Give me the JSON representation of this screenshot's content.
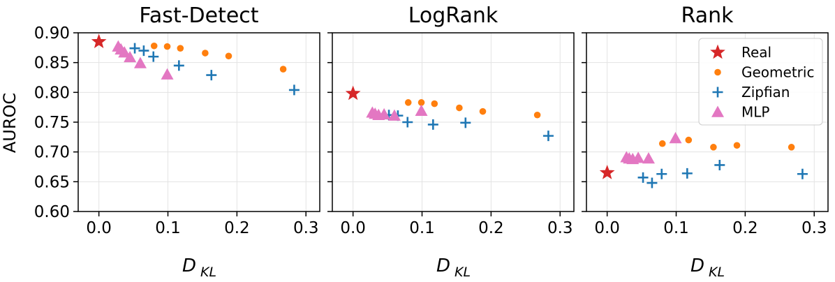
{
  "figure": {
    "ylabel": "AUROC",
    "y_ticks": [
      "0.60",
      "0.65",
      "0.70",
      "0.75",
      "0.80",
      "0.85",
      "0.90"
    ],
    "x_ticks": [
      "0.0",
      "0.1",
      "0.2",
      "0.3"
    ],
    "colors": {
      "Real": "#d62728",
      "Geometric": "#ff7f0e",
      "Zipfian": "#1f77b4",
      "MLP": "#e377c2"
    },
    "legend": {
      "location": "top-right",
      "entries": [
        "Real",
        "Geometric",
        "Zipfian",
        "MLP"
      ]
    }
  },
  "chart_data": [
    {
      "type": "scatter",
      "title": "Fast-Detect",
      "xlabel_main": "D",
      "xlabel_sub": "KL",
      "ylabel": "AUROC",
      "xlim": [
        -0.03,
        0.32
      ],
      "ylim": [
        0.6,
        0.9
      ],
      "grid": true,
      "series": [
        {
          "name": "Real",
          "marker": "star",
          "points": [
            [
              0.0,
              0.885
            ]
          ]
        },
        {
          "name": "Geometric",
          "marker": "circle",
          "points": [
            [
              0.08,
              0.878
            ],
            [
              0.099,
              0.877
            ],
            [
              0.118,
              0.874
            ],
            [
              0.154,
              0.866
            ],
            [
              0.188,
              0.861
            ],
            [
              0.267,
              0.839
            ]
          ]
        },
        {
          "name": "Zipfian",
          "marker": "plus",
          "points": [
            [
              0.052,
              0.874
            ],
            [
              0.065,
              0.87
            ],
            [
              0.079,
              0.86
            ],
            [
              0.116,
              0.845
            ],
            [
              0.163,
              0.829
            ],
            [
              0.283,
              0.804
            ]
          ]
        },
        {
          "name": "MLP",
          "marker": "triangle",
          "points": [
            [
              0.028,
              0.877
            ],
            [
              0.032,
              0.872
            ],
            [
              0.037,
              0.867
            ],
            [
              0.045,
              0.859
            ],
            [
              0.06,
              0.849
            ],
            [
              0.099,
              0.83
            ]
          ]
        }
      ]
    },
    {
      "type": "scatter",
      "title": "LogRank",
      "xlabel_main": "D",
      "xlabel_sub": "KL",
      "xlim": [
        -0.03,
        0.32
      ],
      "ylim": [
        0.6,
        0.9
      ],
      "grid": true,
      "series": [
        {
          "name": "Real",
          "marker": "star",
          "points": [
            [
              0.0,
              0.798
            ]
          ]
        },
        {
          "name": "Geometric",
          "marker": "circle",
          "points": [
            [
              0.08,
              0.783
            ],
            [
              0.099,
              0.783
            ],
            [
              0.118,
              0.781
            ],
            [
              0.154,
              0.774
            ],
            [
              0.188,
              0.768
            ],
            [
              0.267,
              0.762
            ]
          ]
        },
        {
          "name": "Zipfian",
          "marker": "plus",
          "points": [
            [
              0.052,
              0.762
            ],
            [
              0.065,
              0.761
            ],
            [
              0.079,
              0.75
            ],
            [
              0.116,
              0.746
            ],
            [
              0.163,
              0.749
            ],
            [
              0.283,
              0.727
            ]
          ]
        },
        {
          "name": "MLP",
          "marker": "triangle",
          "points": [
            [
              0.028,
              0.766
            ],
            [
              0.032,
              0.764
            ],
            [
              0.037,
              0.762
            ],
            [
              0.045,
              0.763
            ],
            [
              0.06,
              0.761
            ],
            [
              0.099,
              0.769
            ]
          ]
        }
      ]
    },
    {
      "type": "scatter",
      "title": "Rank",
      "xlabel_main": "D",
      "xlabel_sub": "KL",
      "xlim": [
        -0.03,
        0.32
      ],
      "ylim": [
        0.6,
        0.9
      ],
      "grid": true,
      "series": [
        {
          "name": "Real",
          "marker": "star",
          "points": [
            [
              0.0,
              0.665
            ]
          ]
        },
        {
          "name": "Geometric",
          "marker": "circle",
          "points": [
            [
              0.08,
              0.714
            ],
            [
              0.118,
              0.72
            ],
            [
              0.154,
              0.708
            ],
            [
              0.188,
              0.711
            ],
            [
              0.267,
              0.708
            ]
          ]
        },
        {
          "name": "Zipfian",
          "marker": "plus",
          "points": [
            [
              0.052,
              0.657
            ],
            [
              0.065,
              0.648
            ],
            [
              0.079,
              0.663
            ],
            [
              0.116,
              0.664
            ],
            [
              0.163,
              0.678
            ],
            [
              0.283,
              0.663
            ]
          ]
        },
        {
          "name": "MLP",
          "marker": "triangle",
          "points": [
            [
              0.028,
              0.691
            ],
            [
              0.032,
              0.689
            ],
            [
              0.037,
              0.688
            ],
            [
              0.045,
              0.69
            ],
            [
              0.06,
              0.689
            ],
            [
              0.099,
              0.723
            ]
          ]
        }
      ]
    }
  ]
}
